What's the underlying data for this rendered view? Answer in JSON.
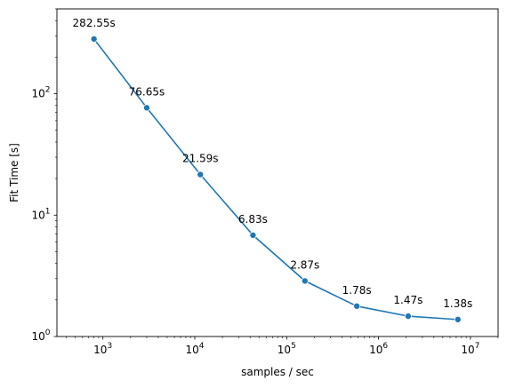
{
  "chart_data": {
    "type": "line",
    "title": "",
    "xlabel": "samples / sec",
    "ylabel": "Fit Time [s]",
    "xscale": "log",
    "yscale": "log",
    "xlim": [
      316,
      20000000
    ],
    "ylim": [
      1,
      500
    ],
    "grid": false,
    "legend": "none",
    "series": [
      {
        "color": "#1f77b4",
        "marker": "circle",
        "x": [
          800,
          3000,
          11500,
          43000,
          158000,
          580000,
          2100000,
          7300000
        ],
        "y": [
          282.55,
          76.65,
          21.59,
          6.83,
          2.87,
          1.78,
          1.47,
          1.38
        ],
        "labels": [
          "282.55s",
          "76.65s",
          "21.59s",
          "6.83s",
          "2.87s",
          "1.78s",
          "1.47s",
          "1.38s"
        ]
      }
    ],
    "x_major_ticks": [
      {
        "value": 1000,
        "base": "10",
        "exp": "3"
      },
      {
        "value": 10000,
        "base": "10",
        "exp": "4"
      },
      {
        "value": 100000,
        "base": "10",
        "exp": "5"
      },
      {
        "value": 1000000,
        "base": "10",
        "exp": "6"
      },
      {
        "value": 10000000,
        "base": "10",
        "exp": "7"
      }
    ],
    "y_major_ticks": [
      {
        "value": 1,
        "base": "10",
        "exp": "0"
      },
      {
        "value": 10,
        "base": "10",
        "exp": "1"
      },
      {
        "value": 100,
        "base": "10",
        "exp": "2"
      }
    ]
  }
}
